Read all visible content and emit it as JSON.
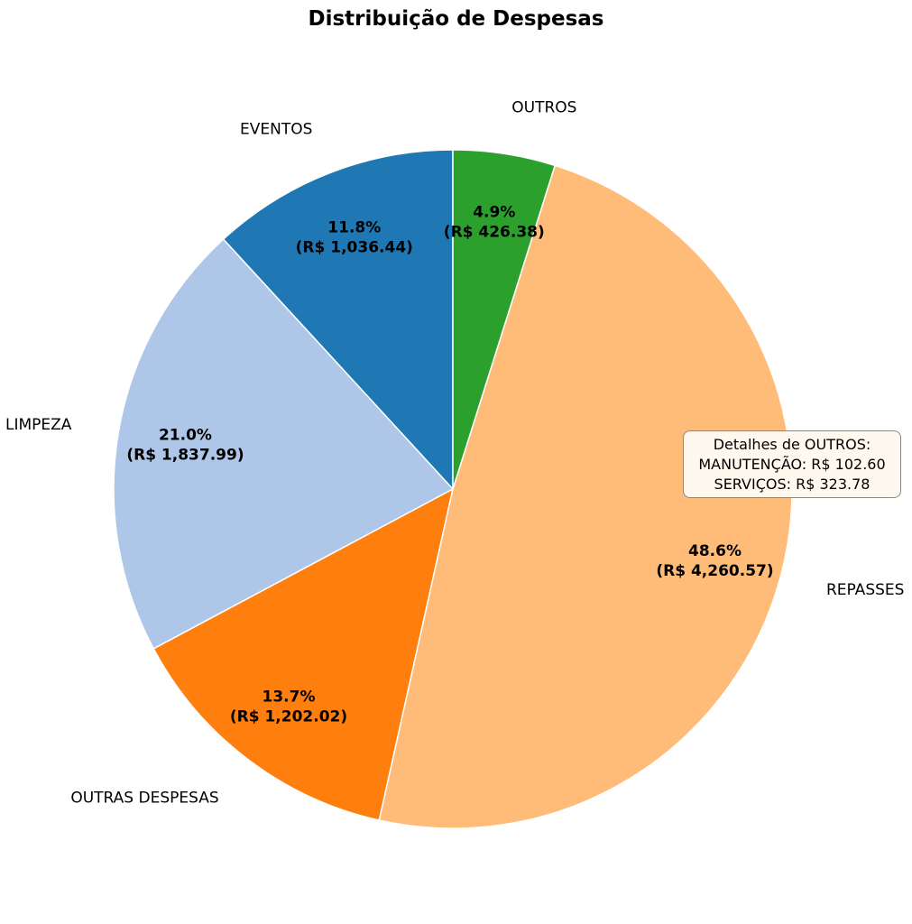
{
  "chart_data": {
    "type": "pie",
    "title": "Distribuição de Despesas",
    "start_angle_deg": 90,
    "direction": "counterclockwise",
    "slices": [
      {
        "label": "EVENTOS",
        "value": 1036.44,
        "pct_label": "11.8%",
        "value_label": "(R$ 1,036.44)",
        "color": "#1f77b4"
      },
      {
        "label": "LIMPEZA",
        "value": 1837.99,
        "pct_label": "21.0%",
        "value_label": "(R$ 1,837.99)",
        "color": "#aec7e8"
      },
      {
        "label": "OUTRAS DESPESAS",
        "value": 1202.02,
        "pct_label": "13.7%",
        "value_label": "(R$ 1,202.02)",
        "color": "#ff7f0e"
      },
      {
        "label": "REPASSES",
        "value": 4260.57,
        "pct_label": "48.6%",
        "value_label": "(R$ 4,260.57)",
        "color": "#ffbb78"
      },
      {
        "label": "OUTROS",
        "value": 426.38,
        "pct_label": "4.9%",
        "value_label": "(R$ 426.38)",
        "color": "#2ca02c"
      }
    ],
    "annotation": {
      "lines": [
        "Detalhes de OUTROS:",
        "MANUTENÇÃO: R$ 102.60",
        "SERVIÇOS: R$ 323.78"
      ]
    }
  }
}
